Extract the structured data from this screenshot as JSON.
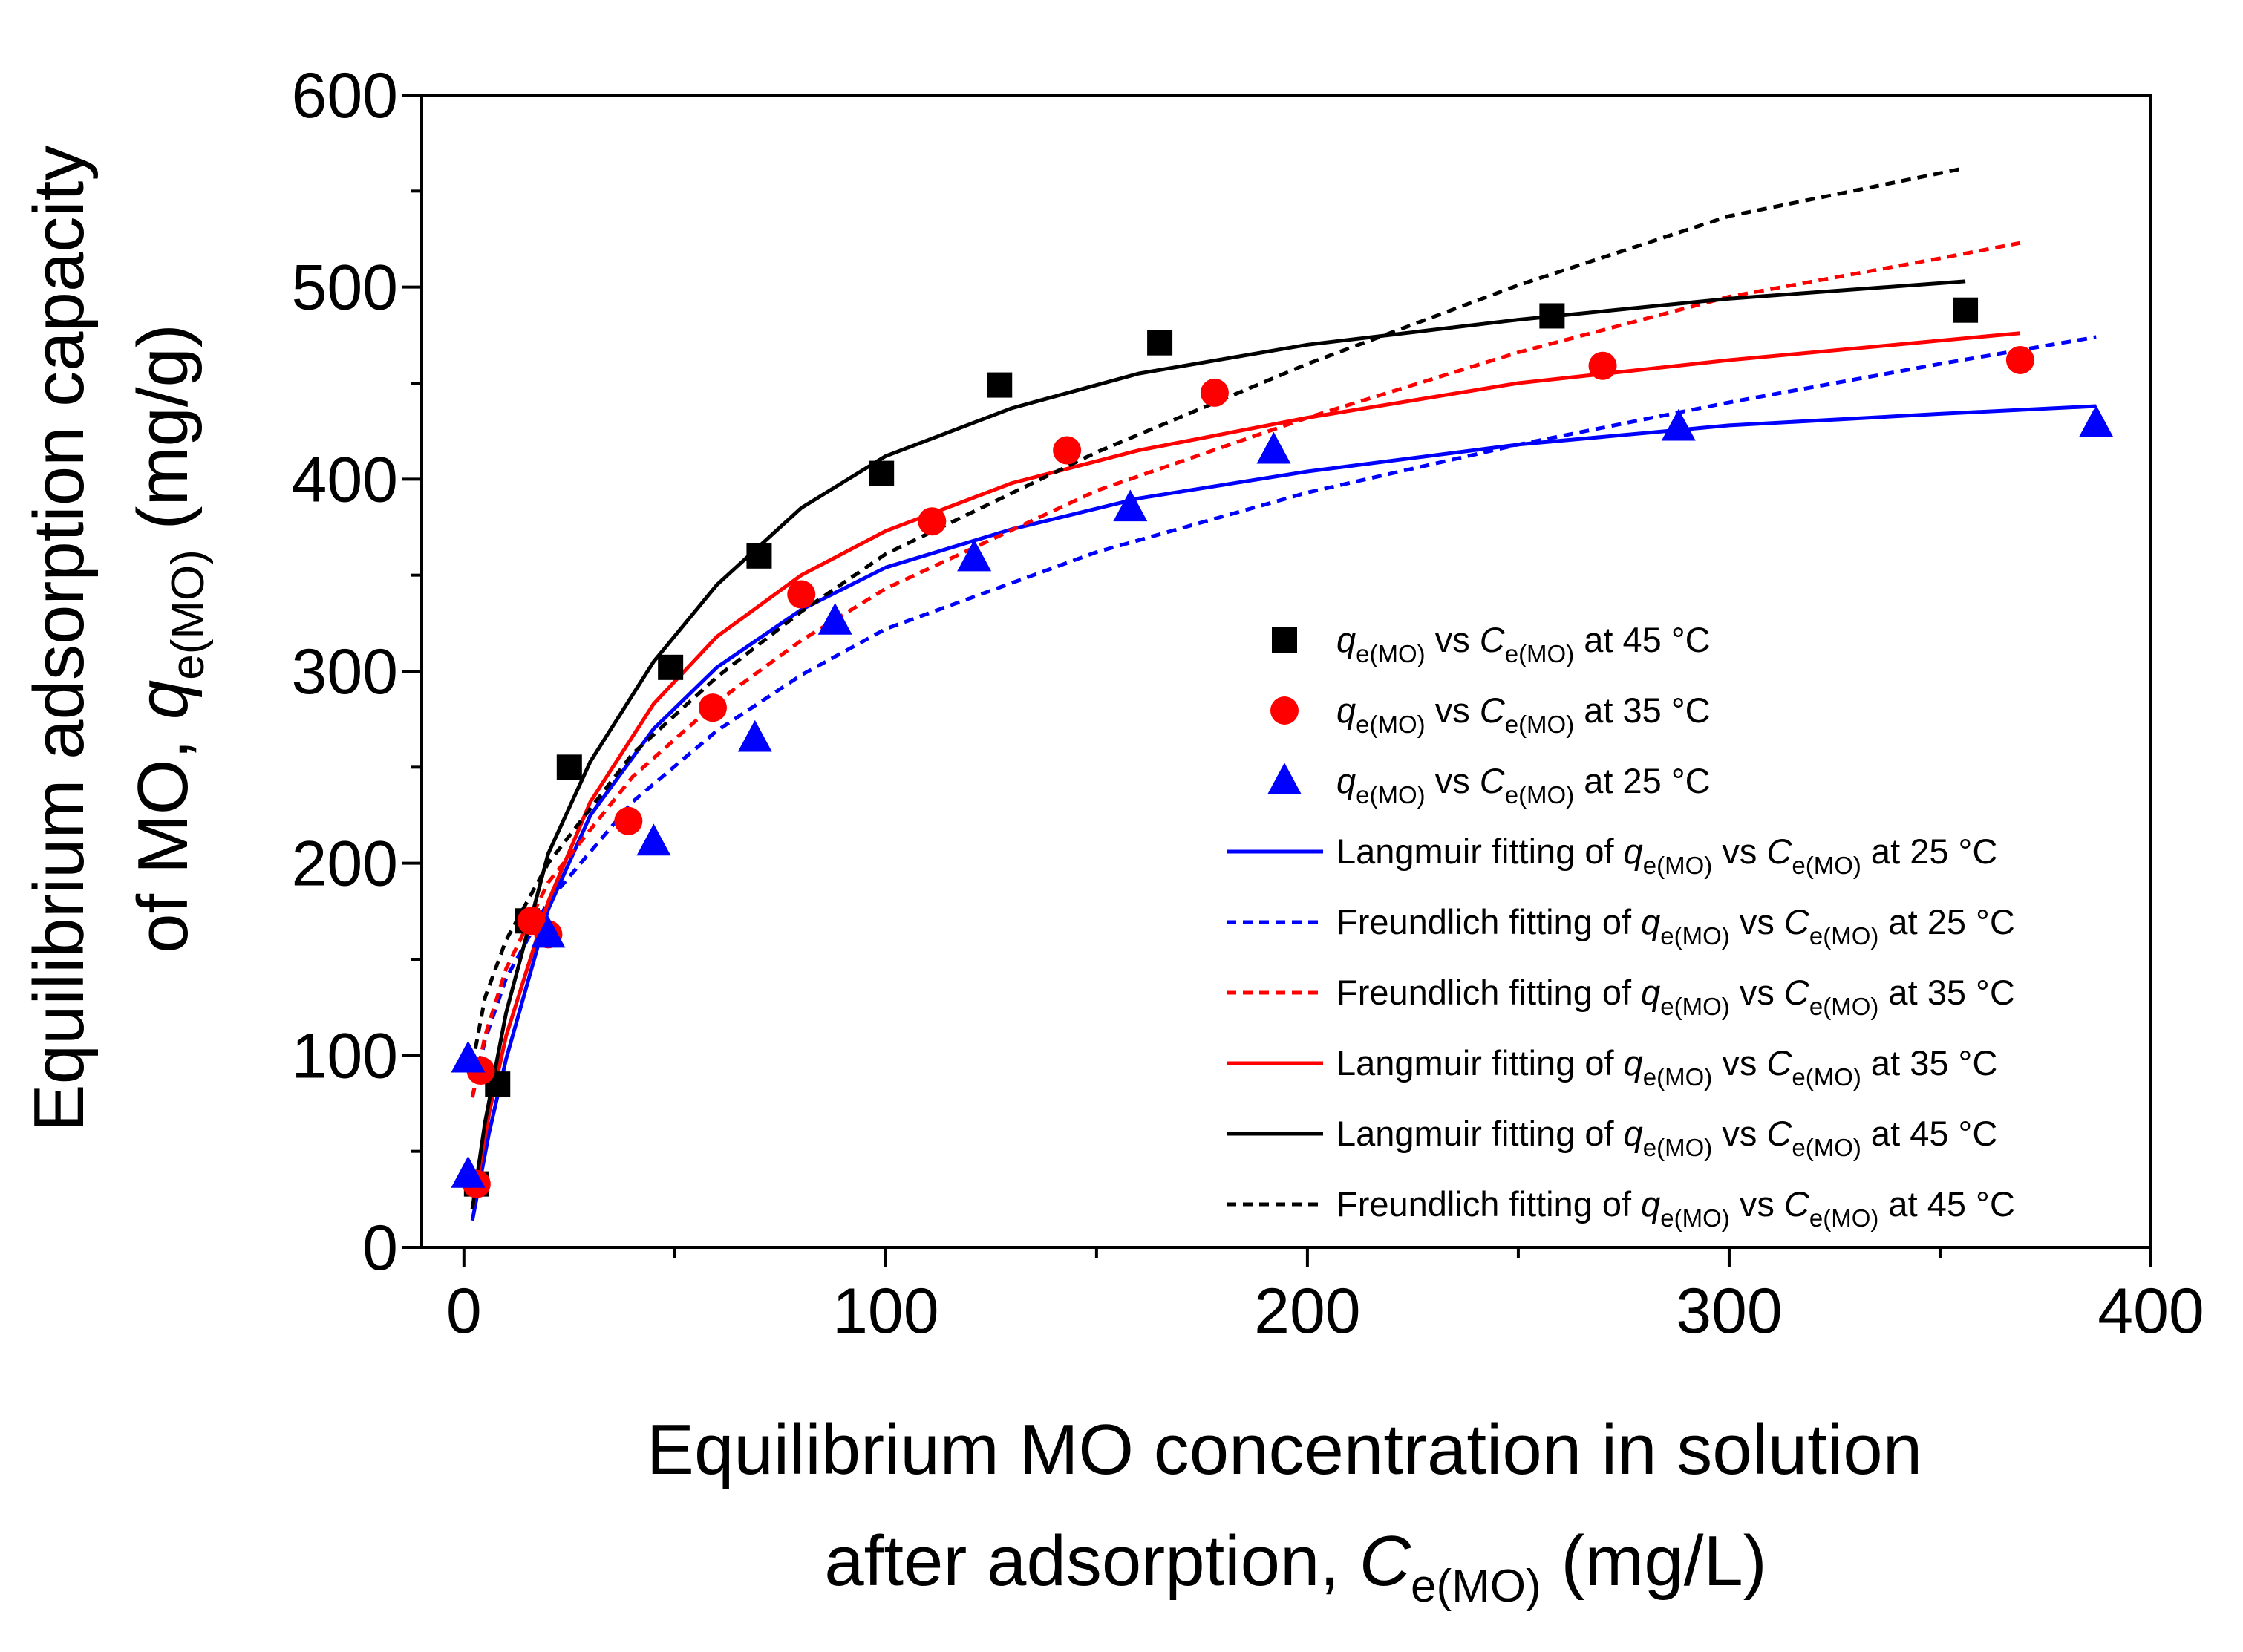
{
  "chart_data": {
    "type": "scatter",
    "title": "",
    "xlabel": {
      "line1": "Equilibrium MO concentration in solution",
      "line2_prefix": "after adsorption, ",
      "line2_sym": "C",
      "line2_sub": "e(MO)",
      "line2_suffix": " (mg/L)"
    },
    "ylabel": {
      "line1": "Equilibrium adsorption capacity",
      "line2_prefix": "of MO, ",
      "line2_sym": "q",
      "line2_sub": "e(MO)",
      "line2_suffix": " (mg/g)"
    },
    "xlim": [
      -10,
      400
    ],
    "ylim": [
      0,
      600
    ],
    "xticks": [
      0,
      100,
      200,
      300,
      400
    ],
    "yticks": [
      0,
      100,
      200,
      300,
      400,
      500,
      600
    ],
    "grid": false,
    "legend_position": "right",
    "legend_words": {
      "vs": "vs",
      "at": "at"
    },
    "series": [
      {
        "name": "qe(MO) vs Ce(MO) at 45 °C",
        "legend": {
          "pre": "",
          "temp": "45 °C"
        },
        "kind": "scatter",
        "marker": "square",
        "color": "#000000",
        "points": [
          [
            3,
            33
          ],
          [
            8,
            85
          ],
          [
            15,
            170
          ],
          [
            25,
            250
          ],
          [
            49,
            302
          ],
          [
            70,
            360
          ],
          [
            99,
            403
          ],
          [
            127,
            449
          ],
          [
            165,
            471
          ],
          [
            258,
            485
          ],
          [
            356,
            488
          ]
        ]
      },
      {
        "name": "qe(MO) vs Ce(MO) at 35 °C",
        "legend": {
          "pre": "",
          "temp": "35 °C"
        },
        "kind": "scatter",
        "marker": "circle",
        "color": "#ff0000",
        "points": [
          [
            3,
            33
          ],
          [
            4,
            92
          ],
          [
            16,
            170
          ],
          [
            20,
            163
          ],
          [
            39,
            222
          ],
          [
            59,
            281
          ],
          [
            80,
            340
          ],
          [
            111,
            378
          ],
          [
            143,
            415
          ],
          [
            178,
            445
          ],
          [
            270,
            459
          ],
          [
            369,
            462
          ]
        ]
      },
      {
        "name": "qe(MO) vs Ce(MO) at 25 °C",
        "legend": {
          "pre": "",
          "temp": "25 °C"
        },
        "kind": "scatter",
        "marker": "triangle",
        "color": "#0000ff",
        "points": [
          [
            1,
            38
          ],
          [
            1,
            98
          ],
          [
            20,
            163
          ],
          [
            45,
            211
          ],
          [
            69,
            265
          ],
          [
            88,
            326
          ],
          [
            121,
            359
          ],
          [
            158,
            385
          ],
          [
            192,
            415
          ],
          [
            288,
            427
          ],
          [
            387,
            429
          ]
        ]
      },
      {
        "name": "Langmuir fitting of qe(MO) vs Ce(MO) at 25 °C",
        "legend": {
          "pre": "Langmuir fitting of ",
          "temp": "25 °C"
        },
        "kind": "line",
        "dash": false,
        "color": "#0000ff",
        "points": [
          [
            2,
            14
          ],
          [
            6,
            60
          ],
          [
            10,
            98
          ],
          [
            20,
            176
          ],
          [
            30,
            225
          ],
          [
            45,
            270
          ],
          [
            60,
            302
          ],
          [
            80,
            332
          ],
          [
            100,
            354
          ],
          [
            130,
            374
          ],
          [
            160,
            390
          ],
          [
            200,
            404
          ],
          [
            250,
            418
          ],
          [
            300,
            428
          ],
          [
            350,
            434
          ],
          [
            387,
            438
          ]
        ]
      },
      {
        "name": "Freundlich fitting of qe(MO) vs Ce(MO) at 25 °C",
        "legend": {
          "pre": "Freundlich fitting of ",
          "temp": "25 °C"
        },
        "kind": "line",
        "dash": true,
        "color": "#0000ff",
        "points": [
          [
            2,
            78
          ],
          [
            5,
            108
          ],
          [
            10,
            140
          ],
          [
            20,
            180
          ],
          [
            40,
            232
          ],
          [
            60,
            269
          ],
          [
            80,
            298
          ],
          [
            100,
            322
          ],
          [
            150,
            362
          ],
          [
            200,
            393
          ],
          [
            250,
            418
          ],
          [
            300,
            440
          ],
          [
            350,
            460
          ],
          [
            387,
            474
          ]
        ]
      },
      {
        "name": "Freundlich fitting of qe(MO) vs Ce(MO) at 35 °C",
        "legend": {
          "pre": "Freundlich fitting of ",
          "temp": "35 °C"
        },
        "kind": "line",
        "dash": true,
        "color": "#ff0000",
        "points": [
          [
            2,
            78
          ],
          [
            5,
            110
          ],
          [
            10,
            145
          ],
          [
            20,
            190
          ],
          [
            40,
            245
          ],
          [
            60,
            284
          ],
          [
            80,
            316
          ],
          [
            100,
            343
          ],
          [
            150,
            394
          ],
          [
            200,
            432
          ],
          [
            250,
            466
          ],
          [
            300,
            495
          ],
          [
            350,
            515
          ],
          [
            369,
            523
          ]
        ]
      },
      {
        "name": "Langmuir fitting of qe(MO) vs Ce(MO) at 35 °C",
        "legend": {
          "pre": "Langmuir fitting of ",
          "temp": "35 °C"
        },
        "kind": "line",
        "dash": false,
        "color": "#ff0000",
        "points": [
          [
            2,
            20
          ],
          [
            6,
            70
          ],
          [
            10,
            110
          ],
          [
            20,
            180
          ],
          [
            30,
            232
          ],
          [
            45,
            283
          ],
          [
            60,
            318
          ],
          [
            80,
            350
          ],
          [
            100,
            373
          ],
          [
            130,
            398
          ],
          [
            160,
            415
          ],
          [
            200,
            432
          ],
          [
            250,
            450
          ],
          [
            300,
            462
          ],
          [
            369,
            476
          ]
        ]
      },
      {
        "name": "Langmuir fitting of qe(MO) vs Ce(MO) at 45 °C",
        "legend": {
          "pre": "Langmuir fitting of ",
          "temp": "45 °C"
        },
        "kind": "line",
        "dash": false,
        "color": "#000000",
        "points": [
          [
            2,
            20
          ],
          [
            5,
            65
          ],
          [
            10,
            122
          ],
          [
            20,
            205
          ],
          [
            30,
            253
          ],
          [
            45,
            305
          ],
          [
            60,
            345
          ],
          [
            80,
            385
          ],
          [
            100,
            412
          ],
          [
            130,
            437
          ],
          [
            160,
            455
          ],
          [
            200,
            470
          ],
          [
            250,
            483
          ],
          [
            300,
            494
          ],
          [
            356,
            503
          ]
        ]
      },
      {
        "name": "Freundlich fitting of qe(MO) vs Ce(MO) at 45 °C",
        "legend": {
          "pre": " Freundlich fitting of ",
          "temp": "45 °C"
        },
        "kind": "line",
        "dash": true,
        "color": "#000000",
        "points": [
          [
            2,
            95
          ],
          [
            5,
            130
          ],
          [
            10,
            160
          ],
          [
            20,
            200
          ],
          [
            40,
            257
          ],
          [
            60,
            297
          ],
          [
            80,
            331
          ],
          [
            100,
            361
          ],
          [
            150,
            414
          ],
          [
            200,
            460
          ],
          [
            250,
            501
          ],
          [
            300,
            537
          ],
          [
            356,
            562
          ]
        ]
      }
    ]
  }
}
